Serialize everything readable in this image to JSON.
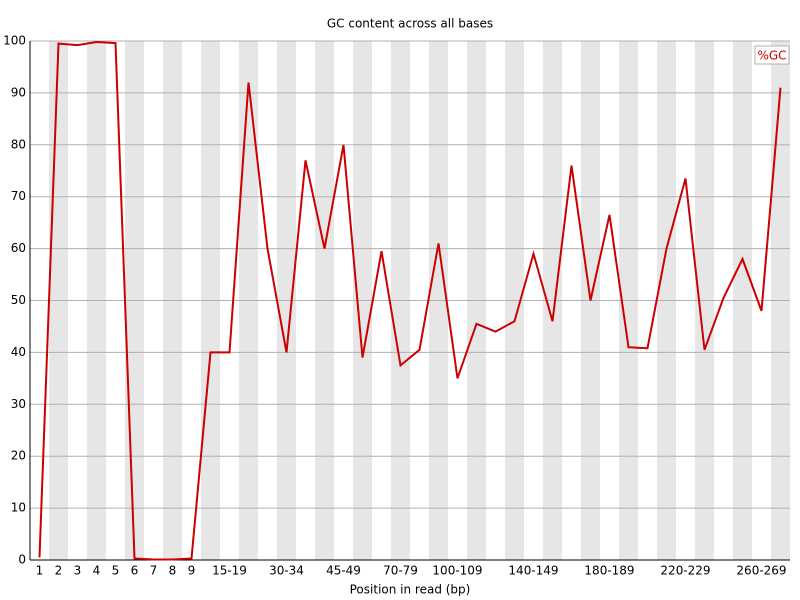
{
  "chart_data": {
    "type": "line",
    "title": "GC content across all bases",
    "x_label": "Position in read (bp)",
    "categories": [
      "1",
      "2",
      "3",
      "4",
      "5",
      "6",
      "7",
      "8",
      "9",
      null,
      "15-19",
      null,
      null,
      "30-34",
      null,
      null,
      "45-49",
      null,
      null,
      "70-79",
      null,
      null,
      "100-109",
      null,
      null,
      null,
      "140-149",
      null,
      null,
      null,
      "180-189",
      null,
      null,
      null,
      "220-229",
      null,
      null,
      null,
      "260-269",
      null
    ],
    "series": [
      {
        "name": "%GC",
        "color": "#cc0000",
        "values": [
          0.5,
          99.5,
          99.2,
          99.8,
          99.6,
          0.3,
          0.1,
          0.1,
          0.3,
          40,
          40,
          92,
          60,
          40,
          77,
          60,
          80,
          39,
          59.5,
          37.5,
          40.5,
          61,
          35,
          45.5,
          44,
          46,
          59,
          46,
          76,
          50,
          66.5,
          41,
          40.8,
          60,
          73.5,
          40.5,
          50.5,
          58,
          48,
          91
        ]
      }
    ],
    "ylim": [
      0,
      100
    ],
    "yticks": [
      0,
      10,
      20,
      30,
      40,
      50,
      60,
      70,
      80,
      90,
      100
    ],
    "grid": true,
    "legend": "top-right"
  }
}
